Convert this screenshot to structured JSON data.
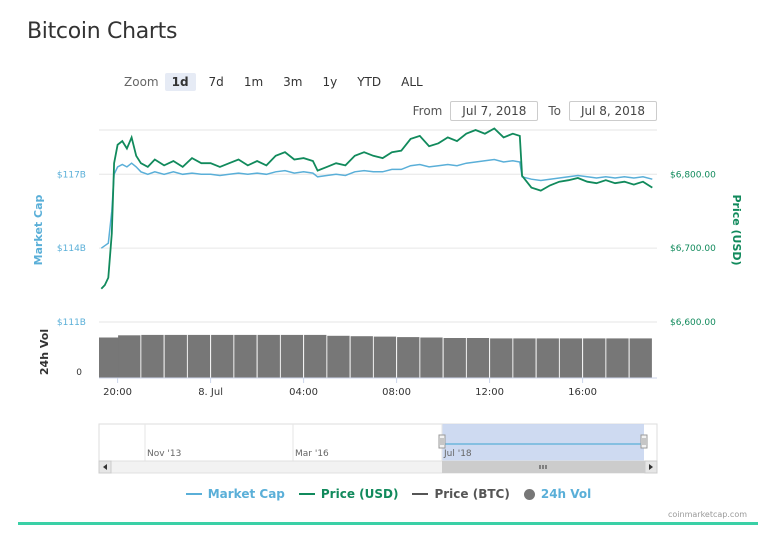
{
  "page_title": "Bitcoin Charts",
  "zoom": {
    "label": "Zoom",
    "buttons": [
      "1d",
      "7d",
      "1m",
      "3m",
      "1y",
      "YTD",
      "ALL"
    ],
    "active": "1d"
  },
  "range": {
    "from_label": "From",
    "from_value": "Jul 7, 2018",
    "to_label": "To",
    "to_value": "Jul 8, 2018"
  },
  "colors": {
    "market_cap": "#5aafd8",
    "price_usd": "#118a5c",
    "price_btc": "#555555",
    "volume": "#777777",
    "navigator_fill": "#c9d6ef",
    "accent_bar": "#3ad0a6"
  },
  "credit": "coinmarketcap.com",
  "chart_data": {
    "type": "line",
    "x": {
      "tick_labels": [
        "20:00",
        "8. Jul",
        "04:00",
        "08:00",
        "12:00",
        "16:00"
      ],
      "tick_hours": [
        20,
        24,
        28,
        32,
        36,
        40
      ],
      "range_hours": [
        19.2,
        43.2
      ]
    },
    "y_left": {
      "label": "Market Cap",
      "tick_labels": [
        "$111B",
        "$114B",
        "$117B"
      ],
      "tick_values": [
        111,
        114,
        117
      ],
      "range": [
        111,
        118.8
      ]
    },
    "y_right": {
      "label": "Price (USD)",
      "tick_labels": [
        "$6,600.00",
        "$6,700.00",
        "$6,800.00"
      ],
      "tick_values": [
        6600,
        6700,
        6800
      ],
      "range": [
        6600,
        6860
      ]
    },
    "y_volume": {
      "label": "24h Vol",
      "tick_labels": [
        "0"
      ],
      "tick_values": [
        0
      ]
    },
    "series": [
      {
        "name": "Market Cap",
        "unit": "B USD",
        "points": [
          [
            19.3,
            114.0
          ],
          [
            19.45,
            114.1
          ],
          [
            19.6,
            114.2
          ],
          [
            19.75,
            115.5
          ],
          [
            19.85,
            117.0
          ],
          [
            20.0,
            117.3
          ],
          [
            20.2,
            117.4
          ],
          [
            20.4,
            117.3
          ],
          [
            20.6,
            117.45
          ],
          [
            20.8,
            117.3
          ],
          [
            21.0,
            117.1
          ],
          [
            21.3,
            117.0
          ],
          [
            21.6,
            117.1
          ],
          [
            22.0,
            117.0
          ],
          [
            22.4,
            117.1
          ],
          [
            22.8,
            117.0
          ],
          [
            23.2,
            117.05
          ],
          [
            23.6,
            117.0
          ],
          [
            24.0,
            117.0
          ],
          [
            24.4,
            116.95
          ],
          [
            24.8,
            117.0
          ],
          [
            25.2,
            117.05
          ],
          [
            25.6,
            117.0
          ],
          [
            26.0,
            117.05
          ],
          [
            26.4,
            117.0
          ],
          [
            26.8,
            117.1
          ],
          [
            27.2,
            117.15
          ],
          [
            27.6,
            117.05
          ],
          [
            28.0,
            117.1
          ],
          [
            28.4,
            117.05
          ],
          [
            28.6,
            116.9
          ],
          [
            29.0,
            116.95
          ],
          [
            29.4,
            117.0
          ],
          [
            29.8,
            116.95
          ],
          [
            30.2,
            117.1
          ],
          [
            30.6,
            117.15
          ],
          [
            31.0,
            117.1
          ],
          [
            31.4,
            117.1
          ],
          [
            31.8,
            117.2
          ],
          [
            32.2,
            117.2
          ],
          [
            32.6,
            117.35
          ],
          [
            33.0,
            117.4
          ],
          [
            33.4,
            117.3
          ],
          [
            33.8,
            117.35
          ],
          [
            34.2,
            117.4
          ],
          [
            34.6,
            117.35
          ],
          [
            35.0,
            117.45
          ],
          [
            35.4,
            117.5
          ],
          [
            35.8,
            117.55
          ],
          [
            36.2,
            117.6
          ],
          [
            36.6,
            117.5
          ],
          [
            37.0,
            117.55
          ],
          [
            37.3,
            117.5
          ],
          [
            37.4,
            116.9
          ],
          [
            37.8,
            116.8
          ],
          [
            38.2,
            116.75
          ],
          [
            38.6,
            116.8
          ],
          [
            39.0,
            116.85
          ],
          [
            39.4,
            116.9
          ],
          [
            39.8,
            116.95
          ],
          [
            40.2,
            116.9
          ],
          [
            40.6,
            116.85
          ],
          [
            41.0,
            116.9
          ],
          [
            41.4,
            116.85
          ],
          [
            41.8,
            116.9
          ],
          [
            42.2,
            116.85
          ],
          [
            42.6,
            116.9
          ],
          [
            43.0,
            116.8
          ]
        ]
      },
      {
        "name": "Price (USD)",
        "unit": "USD",
        "points": [
          [
            19.3,
            6645
          ],
          [
            19.45,
            6650
          ],
          [
            19.6,
            6660
          ],
          [
            19.75,
            6720
          ],
          [
            19.85,
            6815
          ],
          [
            20.0,
            6840
          ],
          [
            20.2,
            6845
          ],
          [
            20.4,
            6835
          ],
          [
            20.6,
            6850
          ],
          [
            20.8,
            6825
          ],
          [
            21.0,
            6815
          ],
          [
            21.3,
            6810
          ],
          [
            21.6,
            6820
          ],
          [
            22.0,
            6812
          ],
          [
            22.4,
            6818
          ],
          [
            22.8,
            6810
          ],
          [
            23.2,
            6822
          ],
          [
            23.6,
            6815
          ],
          [
            24.0,
            6815
          ],
          [
            24.4,
            6810
          ],
          [
            24.8,
            6815
          ],
          [
            25.2,
            6820
          ],
          [
            25.6,
            6812
          ],
          [
            26.0,
            6818
          ],
          [
            26.4,
            6812
          ],
          [
            26.8,
            6825
          ],
          [
            27.2,
            6830
          ],
          [
            27.6,
            6820
          ],
          [
            28.0,
            6822
          ],
          [
            28.4,
            6818
          ],
          [
            28.6,
            6805
          ],
          [
            29.0,
            6810
          ],
          [
            29.4,
            6815
          ],
          [
            29.8,
            6812
          ],
          [
            30.2,
            6825
          ],
          [
            30.6,
            6830
          ],
          [
            31.0,
            6825
          ],
          [
            31.4,
            6822
          ],
          [
            31.8,
            6830
          ],
          [
            32.2,
            6832
          ],
          [
            32.6,
            6848
          ],
          [
            33.0,
            6852
          ],
          [
            33.4,
            6838
          ],
          [
            33.8,
            6842
          ],
          [
            34.2,
            6850
          ],
          [
            34.6,
            6845
          ],
          [
            35.0,
            6855
          ],
          [
            35.4,
            6860
          ],
          [
            35.8,
            6855
          ],
          [
            36.2,
            6862
          ],
          [
            36.6,
            6850
          ],
          [
            37.0,
            6855
          ],
          [
            37.3,
            6852
          ],
          [
            37.4,
            6798
          ],
          [
            37.8,
            6782
          ],
          [
            38.2,
            6778
          ],
          [
            38.6,
            6785
          ],
          [
            39.0,
            6790
          ],
          [
            39.4,
            6792
          ],
          [
            39.8,
            6795
          ],
          [
            40.2,
            6790
          ],
          [
            40.6,
            6788
          ],
          [
            41.0,
            6792
          ],
          [
            41.4,
            6788
          ],
          [
            41.8,
            6790
          ],
          [
            42.2,
            6786
          ],
          [
            42.6,
            6790
          ],
          [
            43.0,
            6782
          ]
        ]
      },
      {
        "name": "24h Vol",
        "unit": "relative",
        "points": [
          [
            19.5,
            0.92
          ],
          [
            20.5,
            0.97
          ],
          [
            21.5,
            0.98
          ],
          [
            22.5,
            0.98
          ],
          [
            23.5,
            0.98
          ],
          [
            24.5,
            0.98
          ],
          [
            25.5,
            0.98
          ],
          [
            26.5,
            0.98
          ],
          [
            27.5,
            0.98
          ],
          [
            28.5,
            0.98
          ],
          [
            29.5,
            0.96
          ],
          [
            30.5,
            0.95
          ],
          [
            31.5,
            0.94
          ],
          [
            32.5,
            0.93
          ],
          [
            33.5,
            0.92
          ],
          [
            34.5,
            0.91
          ],
          [
            35.5,
            0.91
          ],
          [
            36.5,
            0.9
          ],
          [
            37.5,
            0.9
          ],
          [
            38.5,
            0.9
          ],
          [
            39.5,
            0.9
          ],
          [
            40.5,
            0.9
          ],
          [
            41.5,
            0.9
          ],
          [
            42.5,
            0.9
          ]
        ]
      }
    ],
    "navigator": {
      "tick_labels": [
        "Nov '13",
        "Mar '16",
        "Jul '18"
      ]
    }
  },
  "legend": [
    {
      "name": "Market Cap",
      "type": "line",
      "color": "#5aafd8"
    },
    {
      "name": "Price (USD)",
      "type": "line",
      "color": "#118a5c"
    },
    {
      "name": "Price (BTC)",
      "type": "line",
      "color": "#555555"
    },
    {
      "name": "24h Vol",
      "type": "dot",
      "color": "#777777"
    }
  ]
}
